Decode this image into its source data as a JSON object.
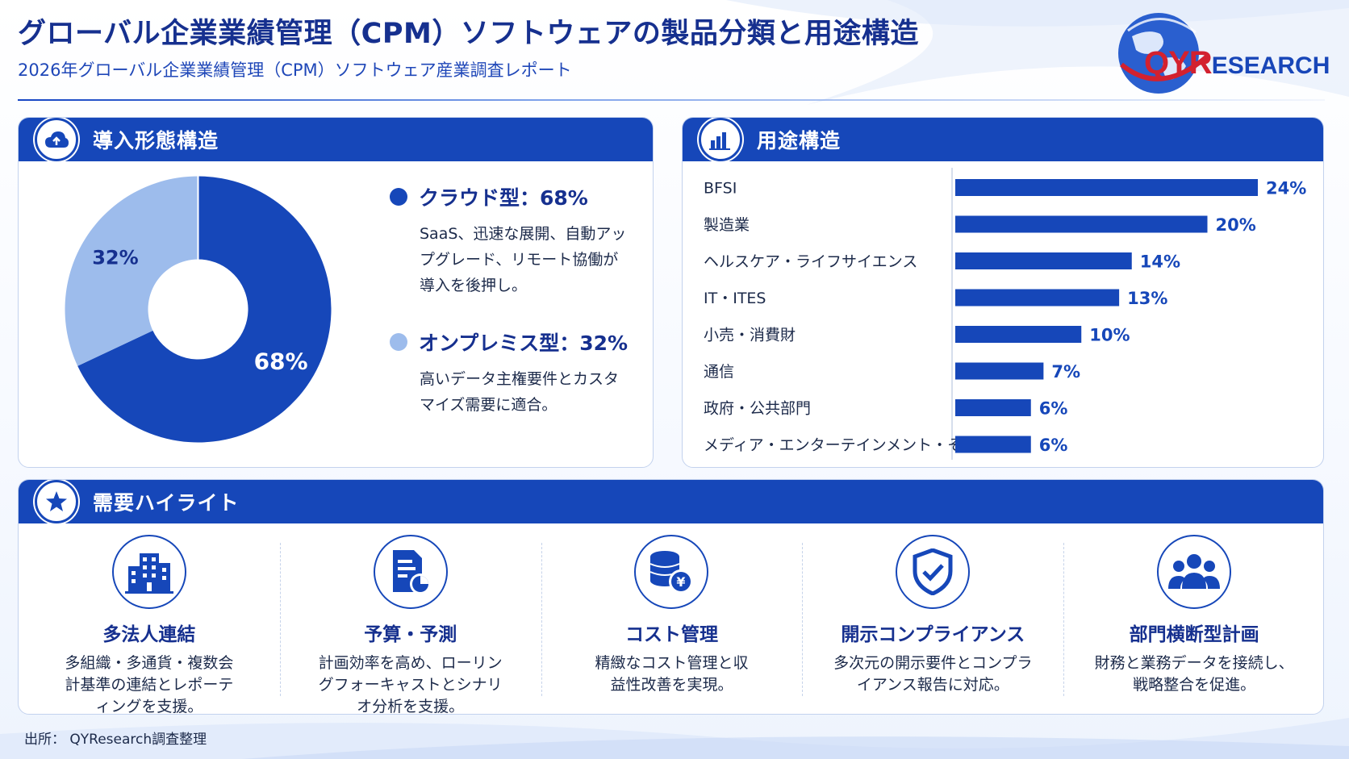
{
  "header": {
    "title": "グローバル企業業績管理（CPM）ソフトウェアの製品分類と用途構造",
    "subtitle": "2026年グローバル企業業績管理（CPM）ソフトウェア産業調査レポート"
  },
  "logo": {
    "text_qy": "QYR",
    "text_rest": "ESEARCH"
  },
  "colors": {
    "primary": "#1647b9",
    "light": "#9dbcec",
    "title": "#16308f"
  },
  "deployment": {
    "title": "導入形態構造",
    "icon": "cloud-upload-icon",
    "items": [
      {
        "name": "クラウド型：68%",
        "desc": "SaaS、迅速な展開、自動アップグレード、リモート協働が導入を後押し。",
        "color": "#1647b9"
      },
      {
        "name": "オンプレミス型：32%",
        "desc": "高いデータ主権要件とカスタマイズ需要に適合。",
        "color": "#9dbcec"
      }
    ]
  },
  "application": {
    "title": "用途構造",
    "icon": "bar-chart-icon"
  },
  "chart_data": [
    {
      "type": "pie",
      "categories": [
        "クラウド型",
        "オンプレミス型"
      ],
      "values": [
        68,
        32
      ],
      "labels": [
        "68%",
        "32%"
      ],
      "colors": [
        "#1647b9",
        "#9dbcec"
      ]
    },
    {
      "type": "bar",
      "orientation": "horizontal",
      "categories": [
        "BFSI",
        "製造業",
        "ヘルスケア・ライフサイエンス",
        "IT・ITES",
        "小売・消費財",
        "通信",
        "政府・公共部門",
        "メディア・エンターテインメント・その他"
      ],
      "values": [
        24,
        20,
        14,
        13,
        10,
        7,
        6,
        6
      ],
      "labels": [
        "24%",
        "20%",
        "14%",
        "13%",
        "10%",
        "7%",
        "6%",
        "6%"
      ]
    }
  ],
  "highlights": {
    "title": "需要ハイライト",
    "icon": "star-icon",
    "items": [
      {
        "title": "多法人連結",
        "desc": "多組織・多通貨・複数会計基準の連結とレポーティングを支援。",
        "icon": "building-icon"
      },
      {
        "title": "予算・予測",
        "desc": "計画効率を高め、ローリングフォーキャストとシナリオ分析を支援。",
        "icon": "document-chart-icon"
      },
      {
        "title": "コスト管理",
        "desc": "精緻なコスト管理と収益性改善を実現。",
        "icon": "coins-yen-icon"
      },
      {
        "title": "開示コンプライアンス",
        "desc": "多次元の開示要件とコンプライアンス報告に対応。",
        "icon": "shield-check-icon"
      },
      {
        "title": "部門横断型計画",
        "desc": "財務と業務データを接続し、戦略整合を促進。",
        "icon": "people-group-icon"
      }
    ]
  },
  "source": "出所： QYResearch調査整理"
}
